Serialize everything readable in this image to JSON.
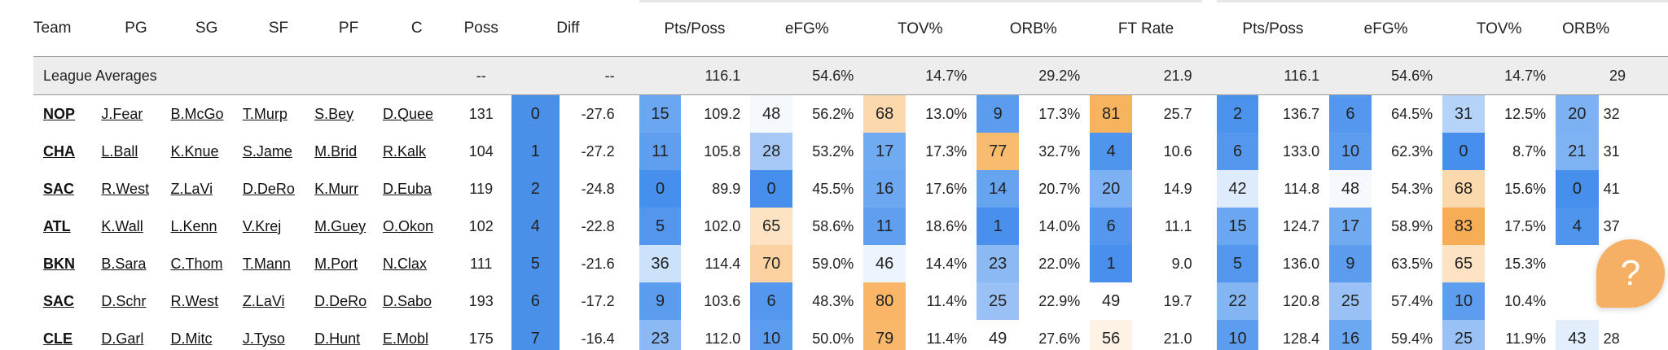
{
  "headers": {
    "team": "Team",
    "pg": "PG",
    "sg": "SG",
    "sf": "SF",
    "pf": "PF",
    "c": "C",
    "poss": "Poss",
    "diff": "Diff",
    "offense": [
      "Pts/Poss",
      "eFG%",
      "TOV%",
      "ORB%",
      "FT Rate"
    ],
    "defense": [
      "Pts/Poss",
      "eFG%",
      "TOV%",
      "ORB%"
    ]
  },
  "league": {
    "label": "League Averages",
    "poss": "--",
    "diff": "--",
    "offense": [
      "116.1",
      "54.6%",
      "14.7%",
      "29.2%",
      "21.9"
    ],
    "defense": [
      "116.1",
      "54.6%",
      "14.7%",
      "29"
    ]
  },
  "rows": [
    {
      "team": "NOP",
      "pg": "J.Fear",
      "sg": "B.McGo",
      "sf": "T.Murp",
      "pf": "S.Bey",
      "c": "D.Quee",
      "poss": "131",
      "rank": "0",
      "diff": "-27.6",
      "offense": [
        {
          "rank": "15",
          "value": "109.2",
          "color": "#6aa6f1"
        },
        {
          "rank": "48",
          "value": "56.2%",
          "color": "#f5f9fe"
        },
        {
          "rank": "68",
          "value": "13.0%",
          "color": "#fcd9ad"
        },
        {
          "rank": "9",
          "value": "17.3%",
          "color": "#5b9cef"
        },
        {
          "rank": "81",
          "value": "25.7",
          "color": "#f8b35f"
        }
      ],
      "defense": [
        {
          "rank": "2",
          "value": "136.7",
          "color": "#4b92ed"
        },
        {
          "rank": "6",
          "value": "64.5%",
          "color": "#5497ee"
        },
        {
          "rank": "31",
          "value": "12.5%",
          "color": "#b5d2f8"
        },
        {
          "rank": "20",
          "value": "32",
          "color": "#7cb1f3"
        }
      ]
    },
    {
      "team": "CHA",
      "pg": "L.Ball",
      "sg": "K.Knue",
      "sf": "S.Jame",
      "pf": "M.Brid",
      "c": "R.Kalk",
      "poss": "104",
      "rank": "1",
      "diff": "-27.2",
      "offense": [
        {
          "rank": "11",
          "value": "105.8",
          "color": "#609fef"
        },
        {
          "rank": "28",
          "value": "53.2%",
          "color": "#a6c8f6"
        },
        {
          "rank": "17",
          "value": "17.3%",
          "color": "#70aaf1"
        },
        {
          "rank": "77",
          "value": "32.7%",
          "color": "#f9bb70"
        },
        {
          "rank": "4",
          "value": "10.6",
          "color": "#4f94ed"
        }
      ],
      "defense": [
        {
          "rank": "6",
          "value": "133.0",
          "color": "#5497ee"
        },
        {
          "rank": "10",
          "value": "62.3%",
          "color": "#5d9def"
        },
        {
          "rank": "0",
          "value": "8.7%",
          "color": "#468fec"
        },
        {
          "rank": "21",
          "value": "31",
          "color": "#7fb2f3"
        }
      ]
    },
    {
      "team": "SAC",
      "pg": "R.West",
      "sg": "Z.LaVi",
      "sf": "D.DeRo",
      "pf": "K.Murr",
      "c": "D.Euba",
      "poss": "119",
      "rank": "2",
      "diff": "-24.8",
      "offense": [
        {
          "rank": "0",
          "value": "89.9",
          "color": "#468fec"
        },
        {
          "rank": "0",
          "value": "45.5%",
          "color": "#468fec"
        },
        {
          "rank": "16",
          "value": "17.6%",
          "color": "#6ca8f1"
        },
        {
          "rank": "14",
          "value": "20.7%",
          "color": "#67a4f0"
        },
        {
          "rank": "20",
          "value": "14.9",
          "color": "#7cb1f3"
        }
      ],
      "defense": [
        {
          "rank": "42",
          "value": "114.8",
          "color": "#deebfc"
        },
        {
          "rank": "48",
          "value": "54.3%",
          "color": "#f5f9fe"
        },
        {
          "rank": "68",
          "value": "15.6%",
          "color": "#fcd9ad"
        },
        {
          "rank": "0",
          "value": "41",
          "color": "#468fec"
        }
      ]
    },
    {
      "team": "ATL",
      "pg": "K.Wall",
      "sg": "L.Kenn",
      "sf": "V.Krej",
      "pf": "M.Guey",
      "c": "O.Okon",
      "poss": "102",
      "rank": "4",
      "diff": "-22.8",
      "offense": [
        {
          "rank": "5",
          "value": "102.0",
          "color": "#5296ee"
        },
        {
          "rank": "65",
          "value": "58.6%",
          "color": "#fde3c4"
        },
        {
          "rank": "11",
          "value": "18.6%",
          "color": "#609fef"
        },
        {
          "rank": "1",
          "value": "14.0%",
          "color": "#4890ec"
        },
        {
          "rank": "6",
          "value": "11.1",
          "color": "#5497ee"
        }
      ],
      "defense": [
        {
          "rank": "15",
          "value": "124.7",
          "color": "#6aa6f1"
        },
        {
          "rank": "17",
          "value": "58.9%",
          "color": "#70aaf1"
        },
        {
          "rank": "83",
          "value": "17.5%",
          "color": "#f7ad55"
        },
        {
          "rank": "4",
          "value": "37",
          "color": "#4f94ed"
        }
      ]
    },
    {
      "team": "BKN",
      "pg": "B.Sara",
      "sg": "C.Thom",
      "sf": "T.Mann",
      "pf": "M.Port",
      "c": "N.Clax",
      "poss": "111",
      "rank": "5",
      "diff": "-21.6",
      "offense": [
        {
          "rank": "36",
          "value": "114.4",
          "color": "#cce1fa"
        },
        {
          "rank": "70",
          "value": "59.0%",
          "color": "#fcd3a0"
        },
        {
          "rank": "46",
          "value": "14.4%",
          "color": "#ecf4fd"
        },
        {
          "rank": "23",
          "value": "22.0%",
          "color": "#8bb9f4"
        },
        {
          "rank": "1",
          "value": "9.0",
          "color": "#4890ec"
        }
      ],
      "defense": [
        {
          "rank": "5",
          "value": "136.0",
          "color": "#5296ee"
        },
        {
          "rank": "9",
          "value": "63.5%",
          "color": "#5b9cef"
        },
        {
          "rank": "65",
          "value": "15.3%",
          "color": "#fde3c4"
        },
        {
          "rank": "",
          "value": "",
          "color": "#ffffff"
        }
      ]
    },
    {
      "team": "SAC",
      "pg": "D.Schr",
      "sg": "R.West",
      "sf": "Z.LaVi",
      "pf": "D.DeRo",
      "c": "D.Sabo",
      "poss": "193",
      "rank": "6",
      "diff": "-17.2",
      "offense": [
        {
          "rank": "9",
          "value": "103.6",
          "color": "#5b9cef"
        },
        {
          "rank": "6",
          "value": "48.3%",
          "color": "#5497ee"
        },
        {
          "rank": "80",
          "value": "11.4%",
          "color": "#f8b666"
        },
        {
          "rank": "25",
          "value": "22.9%",
          "color": "#9ac1f5"
        },
        {
          "rank": "49",
          "value": "19.7",
          "color": "#ffffff"
        }
      ],
      "defense": [
        {
          "rank": "22",
          "value": "120.8",
          "color": "#84b5f3"
        },
        {
          "rank": "25",
          "value": "57.4%",
          "color": "#9ac1f5"
        },
        {
          "rank": "10",
          "value": "10.4%",
          "color": "#5d9def"
        },
        {
          "rank": "",
          "value": "",
          "color": "#ffffff"
        }
      ]
    },
    {
      "team": "CLE",
      "pg": "D.Garl",
      "sg": "D.Mitc",
      "sf": "J.Tyso",
      "pf": "D.Hunt",
      "c": "E.Mobl",
      "poss": "175",
      "rank": "7",
      "diff": "-16.4",
      "offense": [
        {
          "rank": "23",
          "value": "112.0",
          "color": "#8bb9f4"
        },
        {
          "rank": "10",
          "value": "50.0%",
          "color": "#5d9def"
        },
        {
          "rank": "79",
          "value": "11.4%",
          "color": "#f8b769"
        },
        {
          "rank": "49",
          "value": "27.6%",
          "color": "#ffffff"
        },
        {
          "rank": "56",
          "value": "21.0",
          "color": "#fdf2e4"
        }
      ],
      "defense": [
        {
          "rank": "10",
          "value": "128.4",
          "color": "#5d9def"
        },
        {
          "rank": "16",
          "value": "59.4%",
          "color": "#6ca8f1"
        },
        {
          "rank": "25",
          "value": "11.9%",
          "color": "#9ac1f5"
        },
        {
          "rank": "43",
          "value": "28",
          "color": "#e2eefc"
        }
      ]
    }
  ],
  "colors": {
    "diff_rank": "#4a8fe8",
    "header_rule": "#9a9a9a",
    "league_bg": "#ededed",
    "help_button": "#f5b063"
  },
  "help_button": {
    "icon": "question-mark-icon",
    "glyph": "?"
  }
}
